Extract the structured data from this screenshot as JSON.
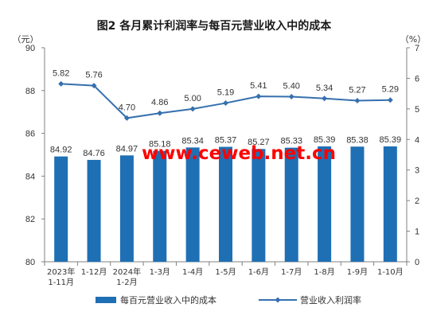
{
  "chart_data": {
    "type": "bar",
    "title": "图2  各月累计利润率与每百元营业收入中的成本",
    "left_unit": "（元）",
    "right_unit": "（%）",
    "categories": [
      [
        "2023年",
        "1-11月"
      ],
      [
        "1-12月"
      ],
      [
        "2024年",
        "1-2月"
      ],
      [
        "1-3月"
      ],
      [
        "1-4月"
      ],
      [
        "1-5月"
      ],
      [
        "1-6月"
      ],
      [
        "1-7月"
      ],
      [
        "1-8月"
      ],
      [
        "1-9月"
      ],
      [
        "1-10月"
      ]
    ],
    "left_axis": {
      "min": 80,
      "max": 90,
      "ticks": [
        "80",
        "82",
        "84",
        "86",
        "88",
        "90"
      ]
    },
    "right_axis": {
      "min": 0,
      "max": 7,
      "ticks": [
        "0",
        "1",
        "2",
        "3",
        "4",
        "5",
        "6",
        "7"
      ]
    },
    "series": [
      {
        "name": "每百元营业收入中的成本",
        "type": "bar",
        "axis": "left",
        "color": "#1f6fb4",
        "values": [
          84.92,
          84.76,
          84.97,
          85.18,
          85.34,
          85.37,
          85.27,
          85.33,
          85.39,
          85.38,
          85.39
        ],
        "labels": [
          "84.92",
          "84.76",
          "84.97",
          "85.18",
          "85.34",
          "85.37",
          "85.27",
          "85.33",
          "85.39",
          "85.38",
          "85.39"
        ]
      },
      {
        "name": "营业收入利润率",
        "type": "line",
        "axis": "right",
        "color": "#3570ae",
        "values": [
          5.82,
          5.76,
          4.7,
          4.86,
          5.0,
          5.19,
          5.41,
          5.4,
          5.34,
          5.27,
          5.29
        ],
        "labels": [
          "5.82",
          "5.76",
          "4.70",
          "4.86",
          "5.00",
          "5.19",
          "5.41",
          "5.40",
          "5.34",
          "5.27",
          "5.29"
        ]
      }
    ],
    "legend_position": "bottom",
    "grid": false,
    "watermark": "www.ceweb.net.cn",
    "watermark_color": "#ff0000"
  }
}
